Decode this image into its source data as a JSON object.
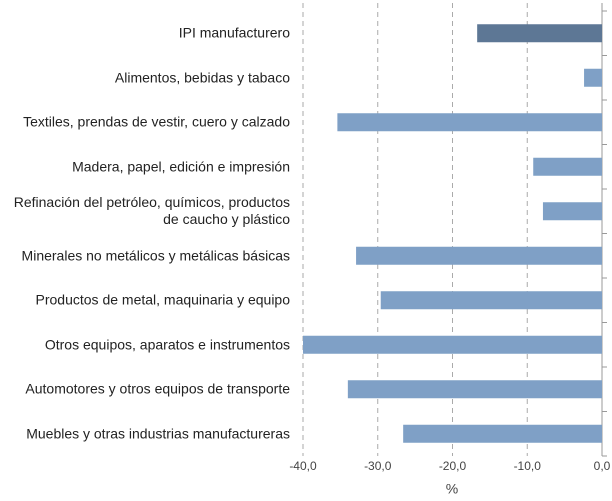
{
  "chart_data": {
    "type": "bar",
    "orientation": "horizontal",
    "categories": [
      "IPI manufacturero",
      "Alimentos, bebidas y tabaco",
      "Textiles, prendas de vestir, cuero y calzado",
      "Madera, papel, edición e impresión",
      "Refinación del petróleo, químicos, productos de caucho y plástico",
      "Minerales no metálicos y metálicas básicas",
      "Productos de metal, maquinaria y equipo",
      "Otros equipos, aparatos e instrumentos",
      "Automotores y otros equipos de transporte",
      "Muebles y otras industrias manufactureras"
    ],
    "values": [
      -16.7,
      -2.4,
      -35.4,
      -9.2,
      -7.9,
      -32.9,
      -29.6,
      -40.0,
      -34.0,
      -26.6
    ],
    "colors": [
      "#5d7795",
      "#7fa0c6",
      "#7fa0c6",
      "#7fa0c6",
      "#7fa0c6",
      "#7fa0c6",
      "#7fa0c6",
      "#7fa0c6",
      "#7fa0c6",
      "#7fa0c6"
    ],
    "xlim": [
      -40,
      0
    ],
    "xticks": [
      {
        "value": -40,
        "label": "-40,0"
      },
      {
        "value": -30,
        "label": "-30,0"
      },
      {
        "value": -20,
        "label": "-20,0"
      },
      {
        "value": -10,
        "label": "-10,0"
      },
      {
        "value": 0,
        "label": "0,0"
      }
    ],
    "xlabel": "%",
    "grid": true
  }
}
